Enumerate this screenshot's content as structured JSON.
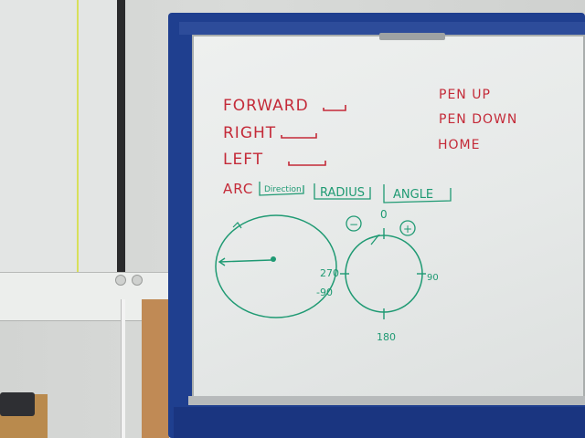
{
  "whiteboard": {
    "commands_left": [
      "FORWARD",
      "RIGHT",
      "LEFT"
    ],
    "commands_right": [
      "PEN UP",
      "PEN DOWN",
      "HOME"
    ],
    "arc": {
      "label": "ARC",
      "params": [
        "Direction",
        "RADIUS",
        "ANGLE"
      ]
    },
    "compass": {
      "top": "0",
      "right": "90",
      "bottom": "180",
      "left_upper": "270",
      "left_lower": "-90",
      "minus": "−",
      "plus": "+"
    }
  },
  "colors": {
    "marker_red": "#c42a38",
    "marker_green": "#1f9a73",
    "board_frame": "#1f3f8f"
  }
}
